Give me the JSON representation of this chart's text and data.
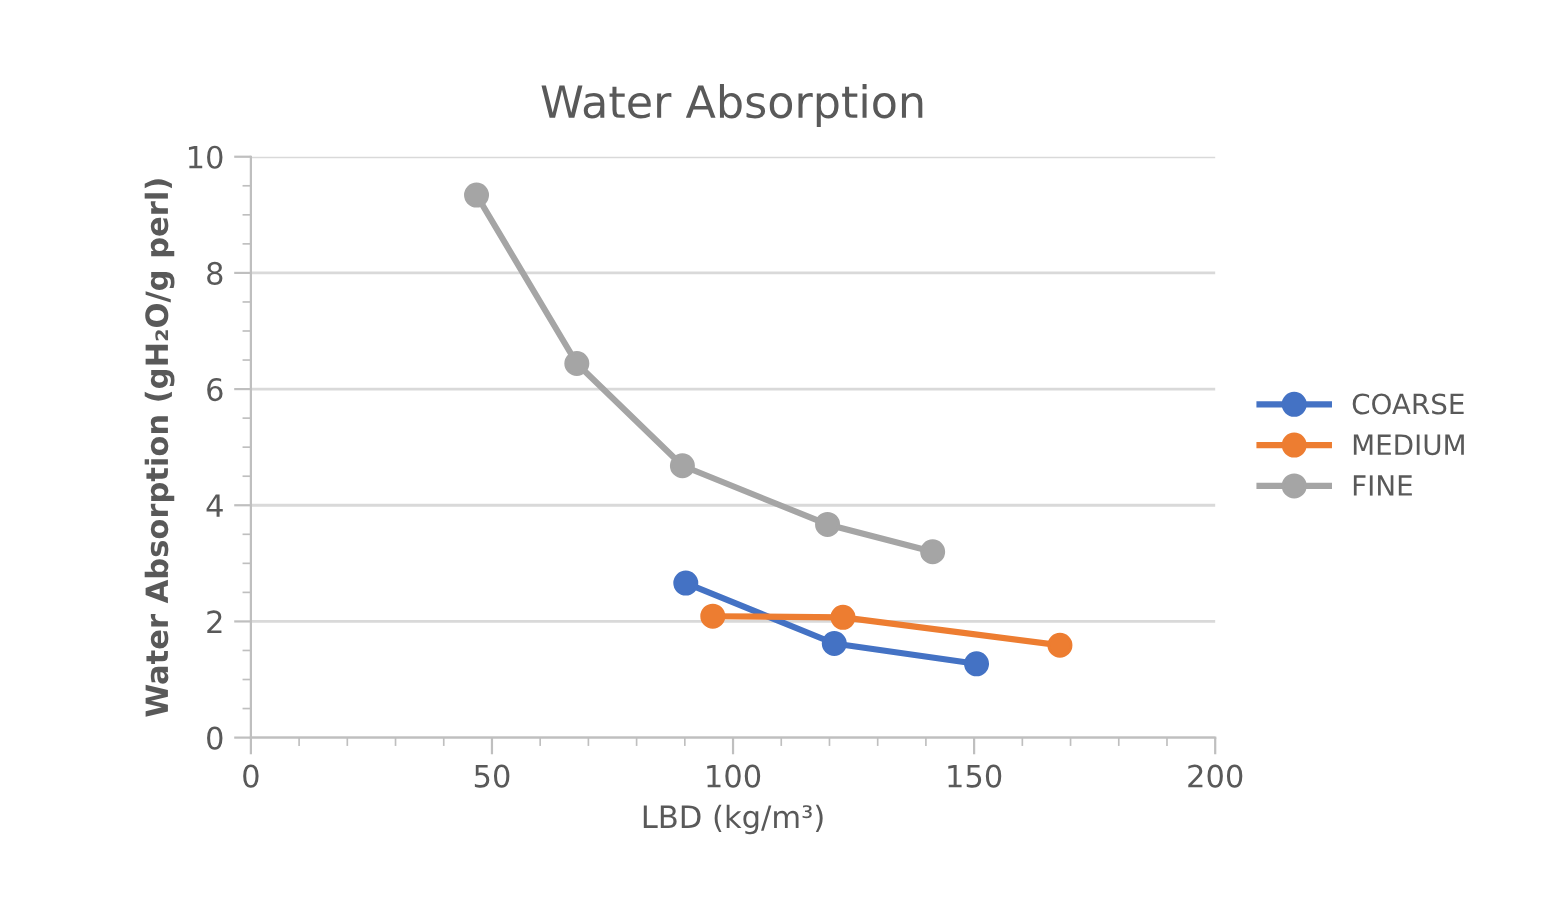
{
  "chart_data": {
    "type": "line",
    "title": "Water Absorption",
    "xlabel": "LBD (kg/m³)",
    "ylabel": "Water Absorption (gH₂O/g perl)",
    "series": [
      {
        "name": "COARSE",
        "color": "#4472c4",
        "x": [
          90.2,
          121.0,
          150.5
        ],
        "values": [
          2.66,
          1.62,
          1.27
        ]
      },
      {
        "name": "MEDIUM",
        "color": "#ed7d31",
        "x": [
          95.8,
          122.8,
          167.8
        ],
        "values": [
          2.09,
          2.07,
          1.59
        ]
      },
      {
        "name": "FINE",
        "color": "#a5a5a5",
        "x": [
          46.8,
          67.6,
          89.5,
          119.6,
          141.4
        ],
        "values": [
          9.34,
          6.44,
          4.68,
          3.67,
          3.2
        ]
      }
    ],
    "xlim": [
      0,
      200
    ],
    "xticks": [
      0,
      50,
      100,
      150,
      200
    ],
    "ylim": [
      0,
      10
    ],
    "yticks": [
      0,
      2,
      4,
      6,
      8,
      10
    ],
    "grid": "y",
    "legend": "right",
    "marker": "circle",
    "line_style": "solid"
  }
}
